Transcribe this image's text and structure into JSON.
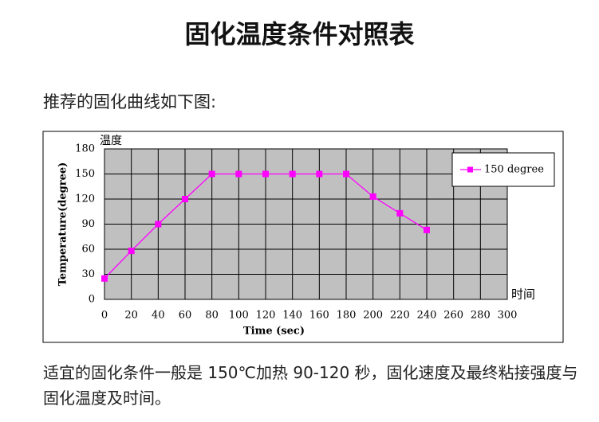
{
  "header": {
    "title": "固化温度条件对照表"
  },
  "intro": "推荐的固化曲线如下图:",
  "chart_data": {
    "type": "line",
    "x": [
      0,
      20,
      40,
      60,
      80,
      100,
      120,
      140,
      160,
      180,
      200,
      220,
      240
    ],
    "series": [
      {
        "name": "150 degree",
        "color": "#ff00ff",
        "values": [
          25,
          58,
          90,
          120,
          150,
          150,
          150,
          150,
          150,
          150,
          123,
          103,
          83
        ]
      }
    ],
    "xlim": [
      0,
      300
    ],
    "xticks": [
      0,
      20,
      40,
      60,
      80,
      100,
      120,
      140,
      160,
      180,
      200,
      220,
      240,
      260,
      280,
      300
    ],
    "ylim": [
      0,
      180
    ],
    "yticks": [
      0,
      30,
      60,
      90,
      120,
      150,
      180
    ],
    "x_label": "Time (sec)",
    "y_label": "Temperature(degree)",
    "y_unit_label": "温度",
    "x_unit_label": "时间",
    "grid": true,
    "legend": "upper right",
    "plot_background": "#c0c0c0"
  },
  "note": "适宜的固化条件一般是 150℃加热 90-120 秒，固化速度及最终粘接强度与固化温度及时间。"
}
